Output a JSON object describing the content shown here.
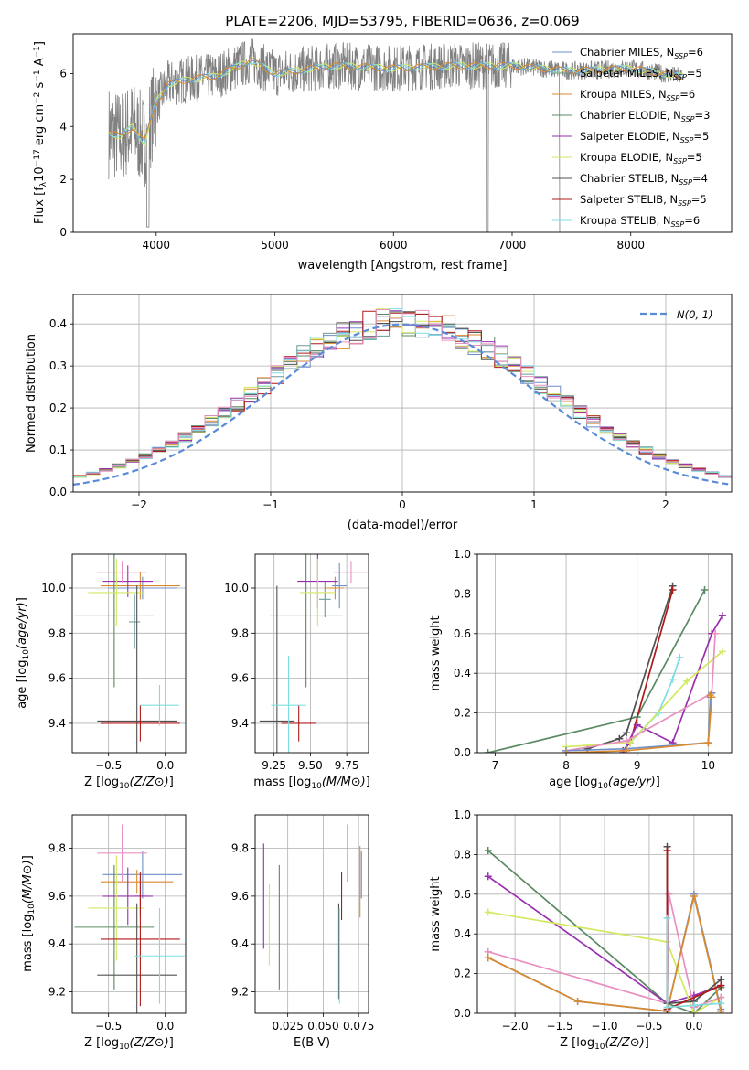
{
  "figure": {
    "title": "PLATE=2206, MJD=53795, FIBERID=0636, z=0.069"
  },
  "palette": {
    "Chabrier MILES": "#6f8fc9",
    "Salpeter MILES": "#6d9a9a",
    "Kroupa MILES": "#d98a2e",
    "Chabrier ELODIE": "#5a8a62",
    "Salpeter ELODIE": "#9a2fb0",
    "Kroupa ELODIE": "#d4e860",
    "Chabrier STELIB": "#505050",
    "Salpeter STELIB": "#b01818",
    "Kroupa STELIB": "#7fdde0",
    "data": "#808080",
    "pink": "#e890c0",
    "normal": "#5a8ad8"
  },
  "chart_data": [
    {
      "id": "spectrum",
      "type": "line",
      "title": "PLATE=2206, MJD=53795, FIBERID=0636, z=0.069",
      "xlabel": "wavelength [Angstrom, rest frame]",
      "ylabel": "Flux [f",
      "ylabel_parts": [
        "Flux [f",
        "λ",
        "10",
        "−17",
        " erg cm",
        "−2",
        " s",
        "−1",
        " A",
        "−1",
        "]"
      ],
      "xlim": [
        3300,
        8850
      ],
      "ylim": [
        0,
        7.5
      ],
      "xticks": [
        4000,
        5000,
        6000,
        7000,
        8000
      ],
      "yticks": [
        0,
        2,
        4,
        6
      ],
      "grid": false,
      "legend_position": "top-right",
      "legend": [
        {
          "name": "Chabrier MILES",
          "nssp": "6"
        },
        {
          "name": "Salpeter MILES",
          "nssp": "5"
        },
        {
          "name": "Kroupa MILES",
          "nssp": "6"
        },
        {
          "name": "Chabrier ELODIE",
          "nssp": "3"
        },
        {
          "name": "Salpeter ELODIE",
          "nssp": "5"
        },
        {
          "name": "Kroupa ELODIE",
          "nssp": "5"
        },
        {
          "name": "Chabrier STELIB",
          "nssp": "4"
        },
        {
          "name": "Salpeter STELIB",
          "nssp": "5"
        },
        {
          "name": "Kroupa STELIB",
          "nssp": "6"
        }
      ],
      "legend_sub": "SSP",
      "continuum_wavelength": [
        3600,
        3700,
        3800,
        3900,
        4000,
        4100,
        4300,
        4500,
        4800,
        5000,
        5500,
        6000,
        6500,
        7000,
        7500,
        8000,
        8400,
        8800
      ],
      "continuum_flux": [
        3.8,
        3.6,
        4.0,
        3.4,
        4.9,
        5.6,
        5.8,
        5.9,
        6.5,
        6.0,
        6.3,
        6.2,
        6.3,
        6.3,
        6.1,
        6.2,
        5.9,
        5.8
      ]
    },
    {
      "id": "residuals",
      "type": "histogram",
      "xlabel": "(data-model)/error",
      "ylabel": "Normed distribution",
      "xlim": [
        -2.5,
        2.5
      ],
      "ylim": [
        0,
        0.47
      ],
      "xticks": [
        -2,
        -1,
        0,
        1,
        2
      ],
      "yticks": [
        0.0,
        0.1,
        0.2,
        0.3,
        0.4
      ],
      "grid": true,
      "legend_position": "top-right",
      "legend": "N(0, 1)",
      "bin_width": 0.1
    },
    {
      "id": "age-vs-Z",
      "type": "errorbar",
      "xlabel": "Z [log10(Z/Z⊙)]",
      "ylabel": "age  [log10(age/yr)]",
      "xlim": [
        -0.82,
        0.18
      ],
      "ylim": [
        9.27,
        10.15
      ],
      "xticks": [
        -0.5,
        0.0
      ],
      "yticks": [
        9.4,
        9.6,
        9.8,
        10.0
      ],
      "grid": true,
      "points": [
        {
          "series": "Chabrier MILES",
          "x": -0.2,
          "y": 10.0,
          "xerr": 0.3,
          "yerr": 0.05
        },
        {
          "series": "Salpeter MILES",
          "x": -0.27,
          "y": 9.85,
          "xerr": 0.05,
          "yerr": 0.12
        },
        {
          "series": "Kroupa MILES",
          "x": -0.22,
          "y": 10.01,
          "xerr": 0.35,
          "yerr": 0.06
        },
        {
          "series": "Chabrier ELODIE",
          "x": -0.45,
          "y": 9.88,
          "xerr": 0.35,
          "yerr": 0.32
        },
        {
          "series": "Salpeter ELODIE",
          "x": -0.33,
          "y": 10.03,
          "xerr": 0.22,
          "yerr": 0.07
        },
        {
          "series": "Kroupa ELODIE",
          "x": -0.43,
          "y": 9.98,
          "xerr": 0.25,
          "yerr": 0.15
        },
        {
          "series": "Chabrier STELIB",
          "x": -0.25,
          "y": 9.41,
          "xerr": 0.35,
          "yerr": 0.6
        },
        {
          "series": "Salpeter STELIB",
          "x": -0.22,
          "y": 9.4,
          "xerr": 0.35,
          "yerr": 0.08
        },
        {
          "series": "Kroupa STELIB",
          "x": -0.05,
          "y": 9.48,
          "xerr": 0.17,
          "yerr": 0.09
        },
        {
          "series": "pink",
          "x": -0.38,
          "y": 10.07,
          "xerr": 0.22,
          "yerr": 0.05
        }
      ]
    },
    {
      "id": "age-vs-mass",
      "type": "errorbar",
      "xlabel": "mass [log10(M/M⊙)]",
      "ylabel": "",
      "xlim": [
        9.12,
        9.9
      ],
      "ylim": [
        9.27,
        10.15
      ],
      "xticks": [
        9.25,
        9.5,
        9.75
      ],
      "yticks": [
        9.4,
        9.6,
        9.8,
        10.0
      ],
      "grid": true,
      "points": [
        {
          "series": "Chabrier MILES",
          "x": 9.7,
          "y": 10.01,
          "xerr": 0.05,
          "yerr": 0.1
        },
        {
          "series": "Salpeter MILES",
          "x": 9.6,
          "y": 9.95,
          "xerr": 0.04,
          "yerr": 0.08
        },
        {
          "series": "Kroupa MILES",
          "x": 9.67,
          "y": 10.0,
          "xerr": 0.06,
          "yerr": 0.05
        },
        {
          "series": "Chabrier ELODIE",
          "x": 9.47,
          "y": 9.88,
          "xerr": 0.25,
          "yerr": 0.32
        },
        {
          "series": "Salpeter ELODIE",
          "x": 9.55,
          "y": 10.03,
          "xerr": 0.14,
          "yerr": 0.12
        },
        {
          "series": "Kroupa ELODIE",
          "x": 9.55,
          "y": 9.98,
          "xerr": 0.12,
          "yerr": 0.15
        },
        {
          "series": "Chabrier STELIB",
          "x": 9.27,
          "y": 9.41,
          "xerr": 0.12,
          "yerr": 0.6
        },
        {
          "series": "Salpeter STELIB",
          "x": 9.42,
          "y": 9.4,
          "xerr": 0.12,
          "yerr": 0.08
        },
        {
          "series": "Kroupa STELIB",
          "x": 9.35,
          "y": 9.48,
          "xerr": 0.12,
          "yerr": 0.22
        },
        {
          "series": "pink",
          "x": 9.78,
          "y": 10.07,
          "xerr": 0.12,
          "yerr": 0.05
        }
      ]
    },
    {
      "id": "massweight-vs-age",
      "type": "line",
      "xlabel": "age  [log10(age/yr)]",
      "ylabel": "mass weight",
      "xlim": [
        6.75,
        10.33
      ],
      "ylim": [
        0,
        1.0
      ],
      "xticks": [
        7,
        8,
        9,
        10
      ],
      "yticks": [
        0.0,
        0.2,
        0.4,
        0.6,
        0.8,
        1.0
      ],
      "grid": true,
      "series": [
        {
          "name": "Chabrier ELODIE",
          "x": [
            6.9,
            9.0,
            9.95
          ],
          "y": [
            0.0,
            0.18,
            0.82
          ]
        },
        {
          "name": "Chabrier STELIB",
          "x": [
            8.3,
            8.75,
            8.85,
            9.5
          ],
          "y": [
            0.02,
            0.07,
            0.1,
            0.84
          ]
        },
        {
          "name": "Salpeter STELIB",
          "x": [
            8.8,
            8.9,
            9.5
          ],
          "y": [
            0.01,
            0.05,
            0.82
          ]
        },
        {
          "name": "Salpeter ELODIE",
          "x": [
            8.8,
            9.0,
            9.5,
            10.05,
            10.2
          ],
          "y": [
            0.0,
            0.14,
            0.05,
            0.6,
            0.69
          ]
        },
        {
          "name": "Kroupa STELIB",
          "x": [
            8.9,
            9.3,
            9.5,
            9.6
          ],
          "y": [
            0.05,
            0.2,
            0.37,
            0.48
          ]
        },
        {
          "name": "Kroupa ELODIE",
          "x": [
            8.0,
            8.9,
            9.7,
            10.2
          ],
          "y": [
            0.03,
            0.05,
            0.36,
            0.51
          ]
        },
        {
          "name": "pink",
          "x": [
            8.0,
            8.85,
            10.05,
            10.1
          ],
          "y": [
            0.01,
            0.06,
            0.3,
            0.6
          ]
        },
        {
          "name": "Chabrier MILES",
          "x": [
            8.0,
            8.85,
            10.0,
            10.03,
            10.05
          ],
          "y": [
            0.01,
            0.02,
            0.05,
            0.28,
            0.3
          ]
        },
        {
          "name": "Kroupa MILES",
          "x": [
            8.0,
            8.85,
            10.0,
            10.05,
            10.03
          ],
          "y": [
            0.0,
            0.01,
            0.05,
            0.28,
            0.29
          ]
        }
      ]
    },
    {
      "id": "mass-vs-Z",
      "type": "errorbar",
      "xlabel": "Z [log10(Z/Z⊙)]",
      "ylabel": "mass [log10(M/M⊙)]",
      "xlim": [
        -0.82,
        0.18
      ],
      "ylim": [
        9.11,
        9.94
      ],
      "xticks": [
        -0.5,
        0.0
      ],
      "yticks": [
        9.2,
        9.4,
        9.6,
        9.8
      ],
      "grid": true,
      "points": [
        {
          "series": "Chabrier MILES",
          "x": -0.2,
          "y": 9.69,
          "xerr": 0.35,
          "yerr": 0.1
        },
        {
          "series": "Salpeter MILES",
          "x": -0.22,
          "y": 9.6,
          "xerr": 0.05,
          "yerr": 0.08
        },
        {
          "series": "Kroupa MILES",
          "x": -0.25,
          "y": 9.66,
          "xerr": 0.32,
          "yerr": 0.05
        },
        {
          "series": "Chabrier ELODIE",
          "x": -0.45,
          "y": 9.47,
          "xerr": 0.35,
          "yerr": 0.26
        },
        {
          "series": "Salpeter ELODIE",
          "x": -0.33,
          "y": 9.6,
          "xerr": 0.22,
          "yerr": 0.12
        },
        {
          "series": "Kroupa ELODIE",
          "x": -0.43,
          "y": 9.55,
          "xerr": 0.25,
          "yerr": 0.22
        },
        {
          "series": "Chabrier STELIB",
          "x": -0.25,
          "y": 9.27,
          "xerr": 0.35,
          "yerr": 0.3
        },
        {
          "series": "Salpeter STELIB",
          "x": -0.22,
          "y": 9.42,
          "xerr": 0.35,
          "yerr": 0.28
        },
        {
          "series": "Kroupa STELIB",
          "x": -0.05,
          "y": 9.35,
          "xerr": 0.22,
          "yerr": 0.2
        },
        {
          "series": "pink",
          "x": -0.38,
          "y": 9.78,
          "xerr": 0.22,
          "yerr": 0.12
        }
      ]
    },
    {
      "id": "mass-vs-ebv",
      "type": "errorbar",
      "xlabel": "E(B-V)",
      "ylabel": "",
      "xlim": [
        0.002,
        0.082
      ],
      "ylim": [
        9.11,
        9.94
      ],
      "xticks": [
        0.025,
        0.05,
        0.075
      ],
      "yticks": [
        9.2,
        9.4,
        9.6,
        9.8
      ],
      "grid": true,
      "points": [
        {
          "series": "Salpeter ELODIE",
          "x": 0.008,
          "y": 9.6,
          "yerr": 0.22
        },
        {
          "series": "Kroupa ELODIE",
          "x": 0.012,
          "y": 9.48,
          "yerr": 0.17
        },
        {
          "series": "Chabrier ELODIE",
          "x": 0.019,
          "y": 9.47,
          "yerr": 0.26
        },
        {
          "series": "Chabrier STELIB",
          "x": 0.061,
          "y": 9.37,
          "yerr": 0.2
        },
        {
          "series": "Kroupa STELIB",
          "x": 0.0615,
          "y": 9.35,
          "yerr": 0.2
        },
        {
          "series": "Salpeter STELIB",
          "x": 0.063,
          "y": 9.6,
          "yerr": 0.1
        },
        {
          "series": "pink",
          "x": 0.067,
          "y": 9.78,
          "yerr": 0.12
        },
        {
          "series": "Kroupa MILES",
          "x": 0.076,
          "y": 9.66,
          "yerr": 0.15
        },
        {
          "series": "Chabrier MILES",
          "x": 0.077,
          "y": 9.69,
          "yerr": 0.1
        }
      ]
    },
    {
      "id": "massweight-vs-Z",
      "type": "line",
      "xlabel": "Z [log10(Z/Z⊙)]",
      "ylabel": "mass weight",
      "xlim": [
        -2.42,
        0.42
      ],
      "ylim": [
        0,
        1.0
      ],
      "xticks": [
        -2.0,
        -1.5,
        -1.0,
        -0.5,
        0.0
      ],
      "yticks": [
        0.0,
        0.2,
        0.4,
        0.6,
        0.8,
        1.0
      ],
      "grid": true,
      "series": [
        {
          "name": "Chabrier ELODIE",
          "x": [
            -2.3,
            -0.3,
            0.0,
            0.3
          ],
          "y": [
            0.82,
            0.05,
            0.0,
            0.13
          ]
        },
        {
          "name": "Salpeter ELODIE",
          "x": [
            -2.3,
            -0.3,
            0.0,
            0.3
          ],
          "y": [
            0.69,
            0.05,
            0.09,
            0.14
          ]
        },
        {
          "name": "Kroupa ELODIE",
          "x": [
            -2.3,
            -0.3,
            0.0,
            0.3
          ],
          "y": [
            0.51,
            0.36,
            0.0,
            0.08
          ]
        },
        {
          "name": "pink",
          "x": [
            -2.3,
            -0.3,
            -0.28,
            0.0,
            0.3
          ],
          "y": [
            0.31,
            0.05,
            0.6,
            0.03,
            0.08
          ]
        },
        {
          "name": "Chabrier MILES",
          "x": [
            -2.3,
            -1.3,
            -0.3,
            0.0,
            0.3
          ],
          "y": [
            0.28,
            0.06,
            0.01,
            0.6,
            0.02
          ]
        },
        {
          "name": "Kroupa MILES",
          "x": [
            -2.3,
            -1.3,
            -0.3,
            0.0,
            0.3
          ],
          "y": [
            0.28,
            0.06,
            0.01,
            0.59,
            0.01
          ]
        },
        {
          "name": "Chabrier STELIB",
          "x": [
            -0.3,
            -0.3,
            0.0,
            0.3
          ],
          "y": [
            0.84,
            0.05,
            0.06,
            0.17
          ]
        },
        {
          "name": "Salpeter STELIB",
          "x": [
            -0.3,
            -0.3,
            0.3
          ],
          "y": [
            0.82,
            0.02,
            0.14
          ]
        },
        {
          "name": "Kroupa STELIB",
          "x": [
            -0.3,
            -0.3,
            0.0,
            0.3
          ],
          "y": [
            0.48,
            0.03,
            0.04,
            0.05
          ]
        }
      ]
    }
  ]
}
